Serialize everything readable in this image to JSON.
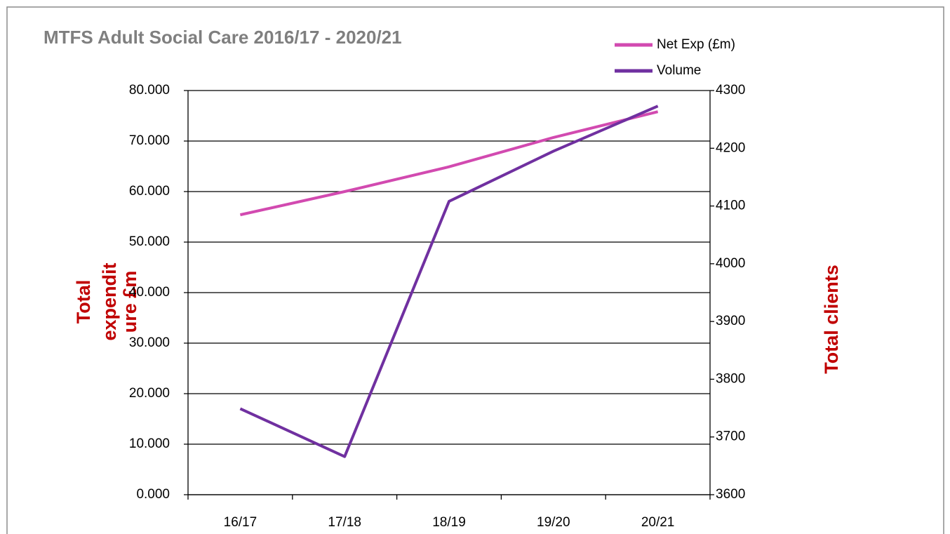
{
  "chart_data": {
    "type": "line",
    "title": "MTFS Adult Social Care 2016/17 - 2020/21",
    "ylabel": [
      "Total",
      "expendit",
      "ure  £m"
    ],
    "y2label": "Total clients",
    "categories": [
      "16/17",
      "17/18",
      "18/19",
      "19/20",
      "20/21"
    ],
    "series": [
      {
        "name": "Net Exp (£m)",
        "color": "#d24ab0",
        "values": [
          55.4,
          60.0,
          64.9,
          70.7,
          75.8
        ]
      },
      {
        "name": "Volume",
        "color": "#7030a0",
        "axis": "y2",
        "values": [
          3749,
          3666,
          4108,
          4195,
          4273
        ]
      }
    ],
    "ylim": [
      0,
      80
    ],
    "yticks": [
      {
        "value": 0,
        "label": "0.000"
      },
      {
        "value": 10,
        "label": "10.000"
      },
      {
        "value": 20,
        "label": "20.000"
      },
      {
        "value": 30,
        "label": "30.000"
      },
      {
        "value": 40,
        "label": "40.000"
      },
      {
        "value": 50,
        "label": "50.000"
      },
      {
        "value": 60,
        "label": "60.000"
      },
      {
        "value": 70,
        "label": "70.000"
      },
      {
        "value": 80,
        "label": "80.000"
      }
    ],
    "y2lim": [
      3600,
      4300
    ],
    "y2ticks": [
      3600,
      3700,
      3800,
      3900,
      4000,
      4100,
      4200,
      4300
    ],
    "grid": true,
    "legend": "top-right"
  }
}
